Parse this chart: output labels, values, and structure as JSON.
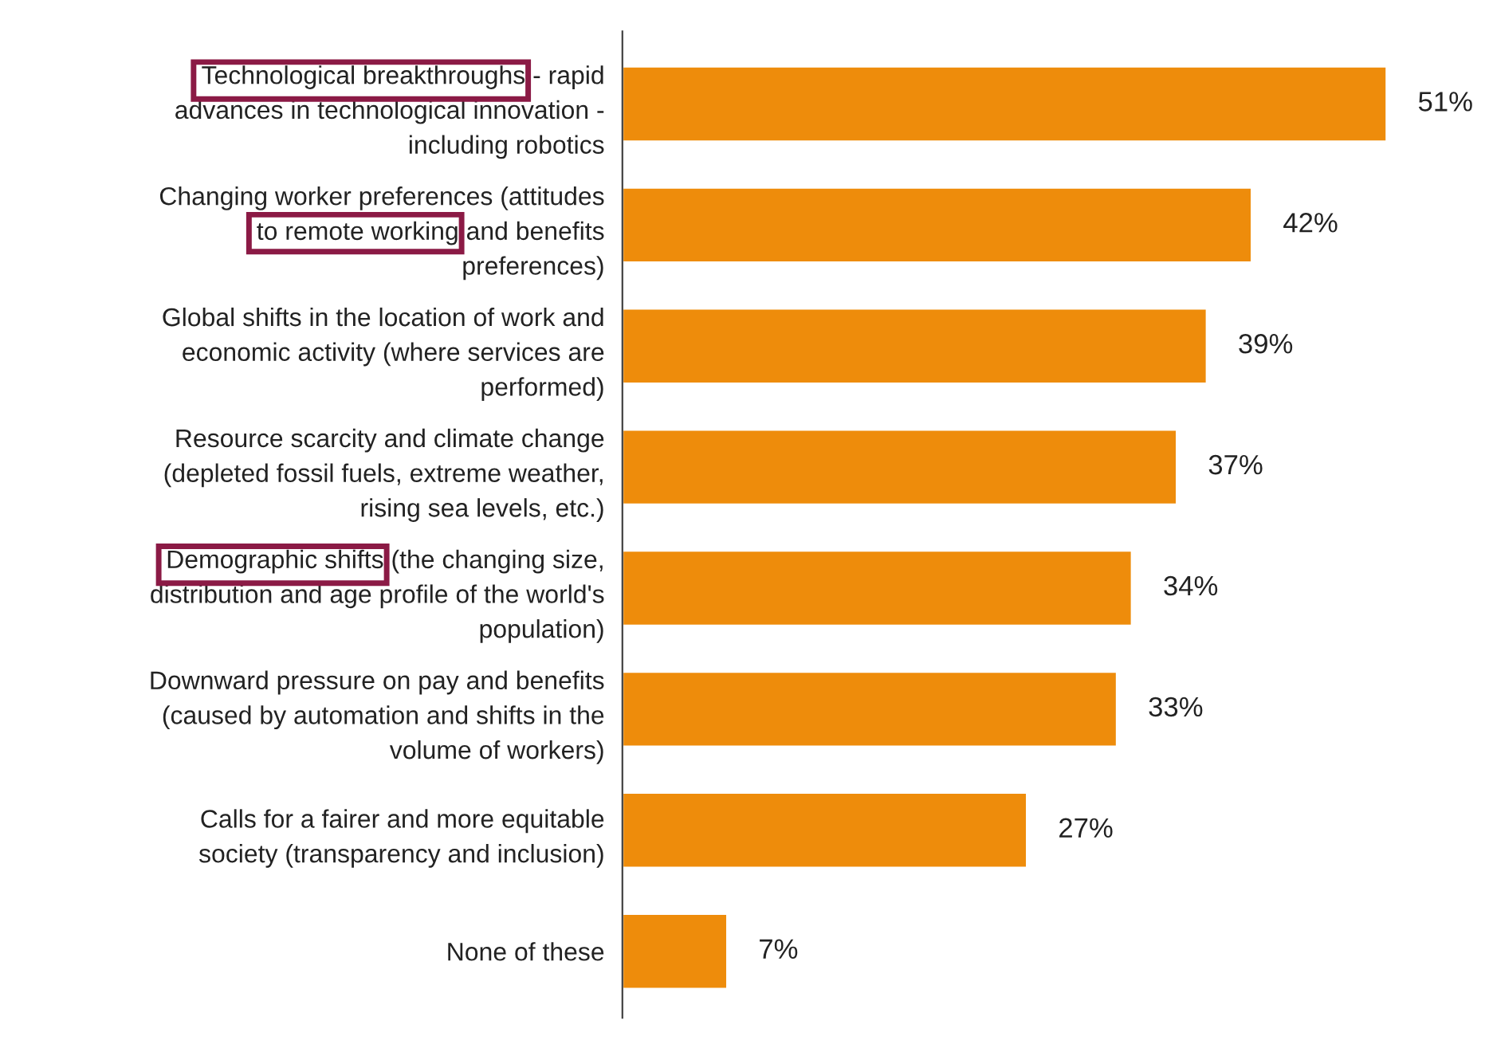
{
  "chart_data": {
    "type": "bar",
    "orientation": "horizontal",
    "categories": [
      "Technological breakthroughs - rapid\nadvances in technological innovation -\nincluding robotics",
      "Changing worker preferences (attitudes\nto remote working and benefits\npreferences)",
      "Global shifts in the location of work and\neconomic activity (where services are\nperformed)",
      "Resource scarcity and climate change\n(depleted fossil fuels, extreme weather,\nrising sea levels, etc.)",
      "Demographic shifts (the changing size,\ndistribution and age profile of the world's\npopulation)",
      "Downward pressure on pay and benefits\n(caused by automation and shifts in the\nvolume of workers)",
      "Calls for a fairer and more equitable\nsociety (transparency and inclusion)",
      "None of these"
    ],
    "values": [
      51,
      42,
      39,
      37,
      34,
      33,
      27,
      7
    ],
    "value_labels": [
      "51%",
      "42%",
      "39%",
      "37%",
      "34%",
      "33%",
      "27%",
      "7%"
    ],
    "color": "#ee8c0b",
    "grid": false,
    "legend": false
  }
}
